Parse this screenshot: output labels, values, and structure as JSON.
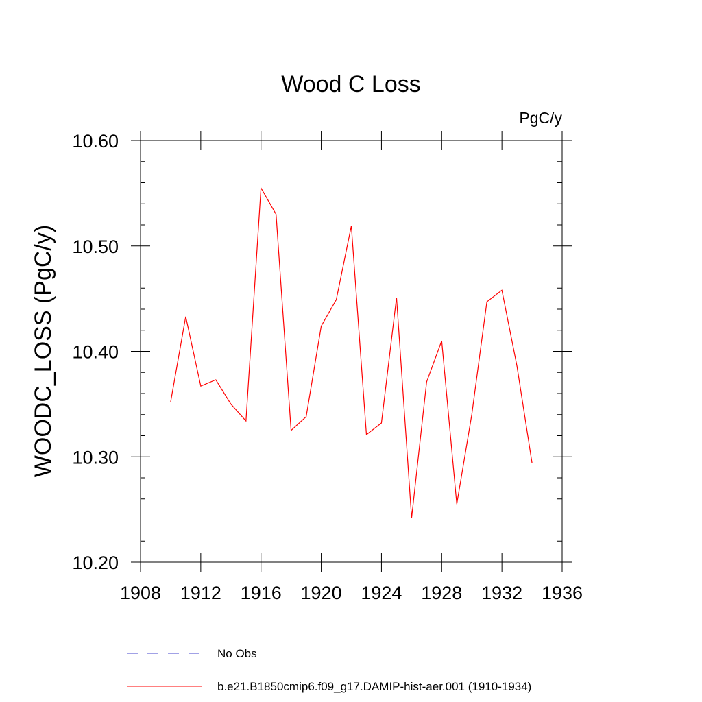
{
  "chart_data": {
    "type": "line",
    "title": "Wood C Loss",
    "units_label": "PgC/y",
    "xlabel": "",
    "ylabel": "WOODC_LOSS  (PgC/y)",
    "xlim": [
      1908,
      1936
    ],
    "ylim": [
      10.2,
      10.6
    ],
    "x_ticks": [
      1908,
      1912,
      1916,
      1920,
      1924,
      1928,
      1932,
      1936
    ],
    "y_ticks": [
      "10.20",
      "10.30",
      "10.40",
      "10.50",
      "10.60"
    ],
    "grid": false,
    "legend_position": "bottom",
    "series": [
      {
        "name": "b.e21.B1850cmip6.f09_g17.DAMIP-hist-aer.001 (1910-1934)",
        "color": "#ff0000",
        "x": [
          1910,
          1911,
          1912,
          1913,
          1914,
          1915,
          1916,
          1917,
          1918,
          1919,
          1920,
          1921,
          1922,
          1923,
          1924,
          1925,
          1926,
          1927,
          1928,
          1929,
          1930,
          1931,
          1932,
          1933,
          1934
        ],
        "values": [
          10.352,
          10.433,
          10.367,
          10.373,
          10.35,
          10.334,
          10.555,
          10.53,
          10.325,
          10.338,
          10.424,
          10.449,
          10.519,
          10.321,
          10.332,
          10.451,
          10.242,
          10.371,
          10.41,
          10.255,
          10.34,
          10.447,
          10.458,
          10.386,
          10.294
        ]
      }
    ],
    "legend": [
      {
        "label": "No Obs",
        "color": "#4444cc",
        "style": "dashed"
      },
      {
        "label": "b.e21.B1850cmip6.f09_g17.DAMIP-hist-aer.001 (1910-1934)",
        "color": "#ff0000",
        "style": "solid"
      }
    ]
  }
}
